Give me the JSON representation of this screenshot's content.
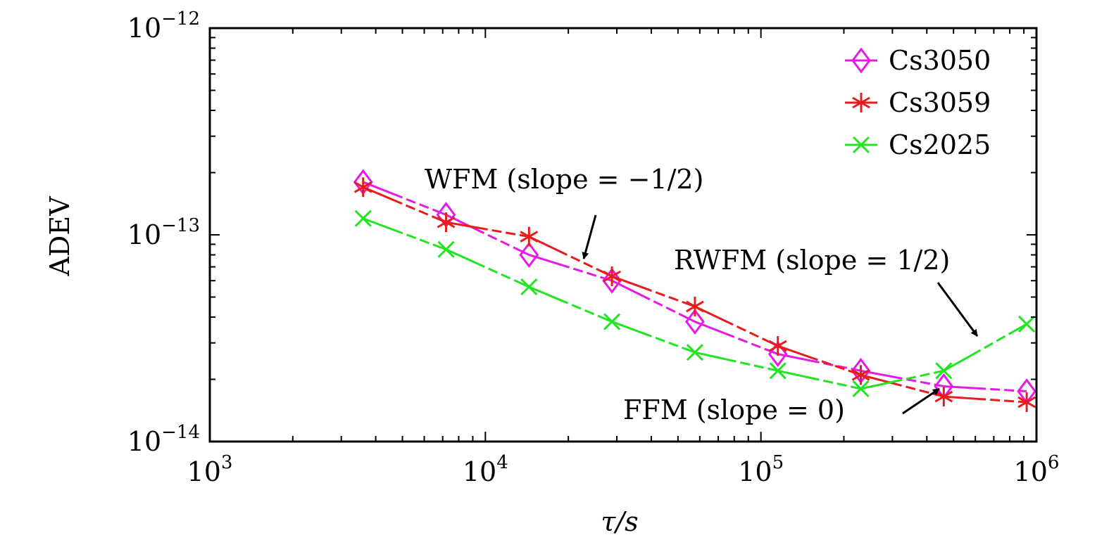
{
  "chart_data": {
    "type": "line",
    "x_scale": "log",
    "y_scale": "log",
    "xlim": [
      1000,
      1000000
    ],
    "ylim": [
      1e-14,
      1e-12
    ],
    "xlabel": "τ/s",
    "ylabel": "ADEV",
    "x_ticks": [
      {
        "value": 1000,
        "base": "10",
        "exp": "3"
      },
      {
        "value": 10000,
        "base": "10",
        "exp": "4"
      },
      {
        "value": 100000,
        "base": "10",
        "exp": "5"
      },
      {
        "value": 1000000,
        "base": "10",
        "exp": "6"
      }
    ],
    "y_ticks": [
      {
        "value": 1e-14,
        "base": "10",
        "exp": "−14"
      },
      {
        "value": 1e-13,
        "base": "10",
        "exp": "−13"
      },
      {
        "value": 1e-12,
        "base": "10",
        "exp": "−12"
      }
    ],
    "legend_position": "top-right",
    "series": [
      {
        "name": "Cs3050",
        "color": "#e619e6",
        "marker": "diamond",
        "x": [
          3600,
          7200,
          14400,
          28800,
          57600,
          115200,
          230400,
          460800,
          921600
        ],
        "y": [
          1.8e-13,
          1.25e-13,
          8e-14,
          6e-14,
          3.8e-14,
          2.65e-14,
          2.2e-14,
          1.85e-14,
          1.75e-14
        ]
      },
      {
        "name": "Cs3059",
        "color": "#e81c1c",
        "marker": "asterisk",
        "x": [
          3600,
          7200,
          14400,
          28800,
          57600,
          115200,
          230400,
          460800,
          921600
        ],
        "y": [
          1.7e-13,
          1.15e-13,
          9.8e-14,
          6.3e-14,
          4.5e-14,
          2.9e-14,
          2.1e-14,
          1.65e-14,
          1.55e-14
        ]
      },
      {
        "name": "Cs2025",
        "color": "#22e522",
        "marker": "cross",
        "x": [
          3600,
          7200,
          14400,
          28800,
          57600,
          115200,
          230400,
          460800,
          921600
        ],
        "y": [
          1.2e-13,
          8.5e-14,
          5.6e-14,
          3.8e-14,
          2.7e-14,
          2.2e-14,
          1.8e-14,
          2.2e-14,
          3.7e-14
        ]
      }
    ],
    "annotations": [
      {
        "text": "WFM (slope = −1/2)",
        "arrow_to": {
          "x": 22000,
          "y": 7.5e-14
        }
      },
      {
        "text": "RWFM (slope = 1/2)",
        "arrow_to": {
          "x": 620000,
          "y": 3e-14
        }
      },
      {
        "text": "FFM (slope = 0)",
        "arrow_to": {
          "x": 440000,
          "y": 1.95e-14
        }
      }
    ]
  }
}
